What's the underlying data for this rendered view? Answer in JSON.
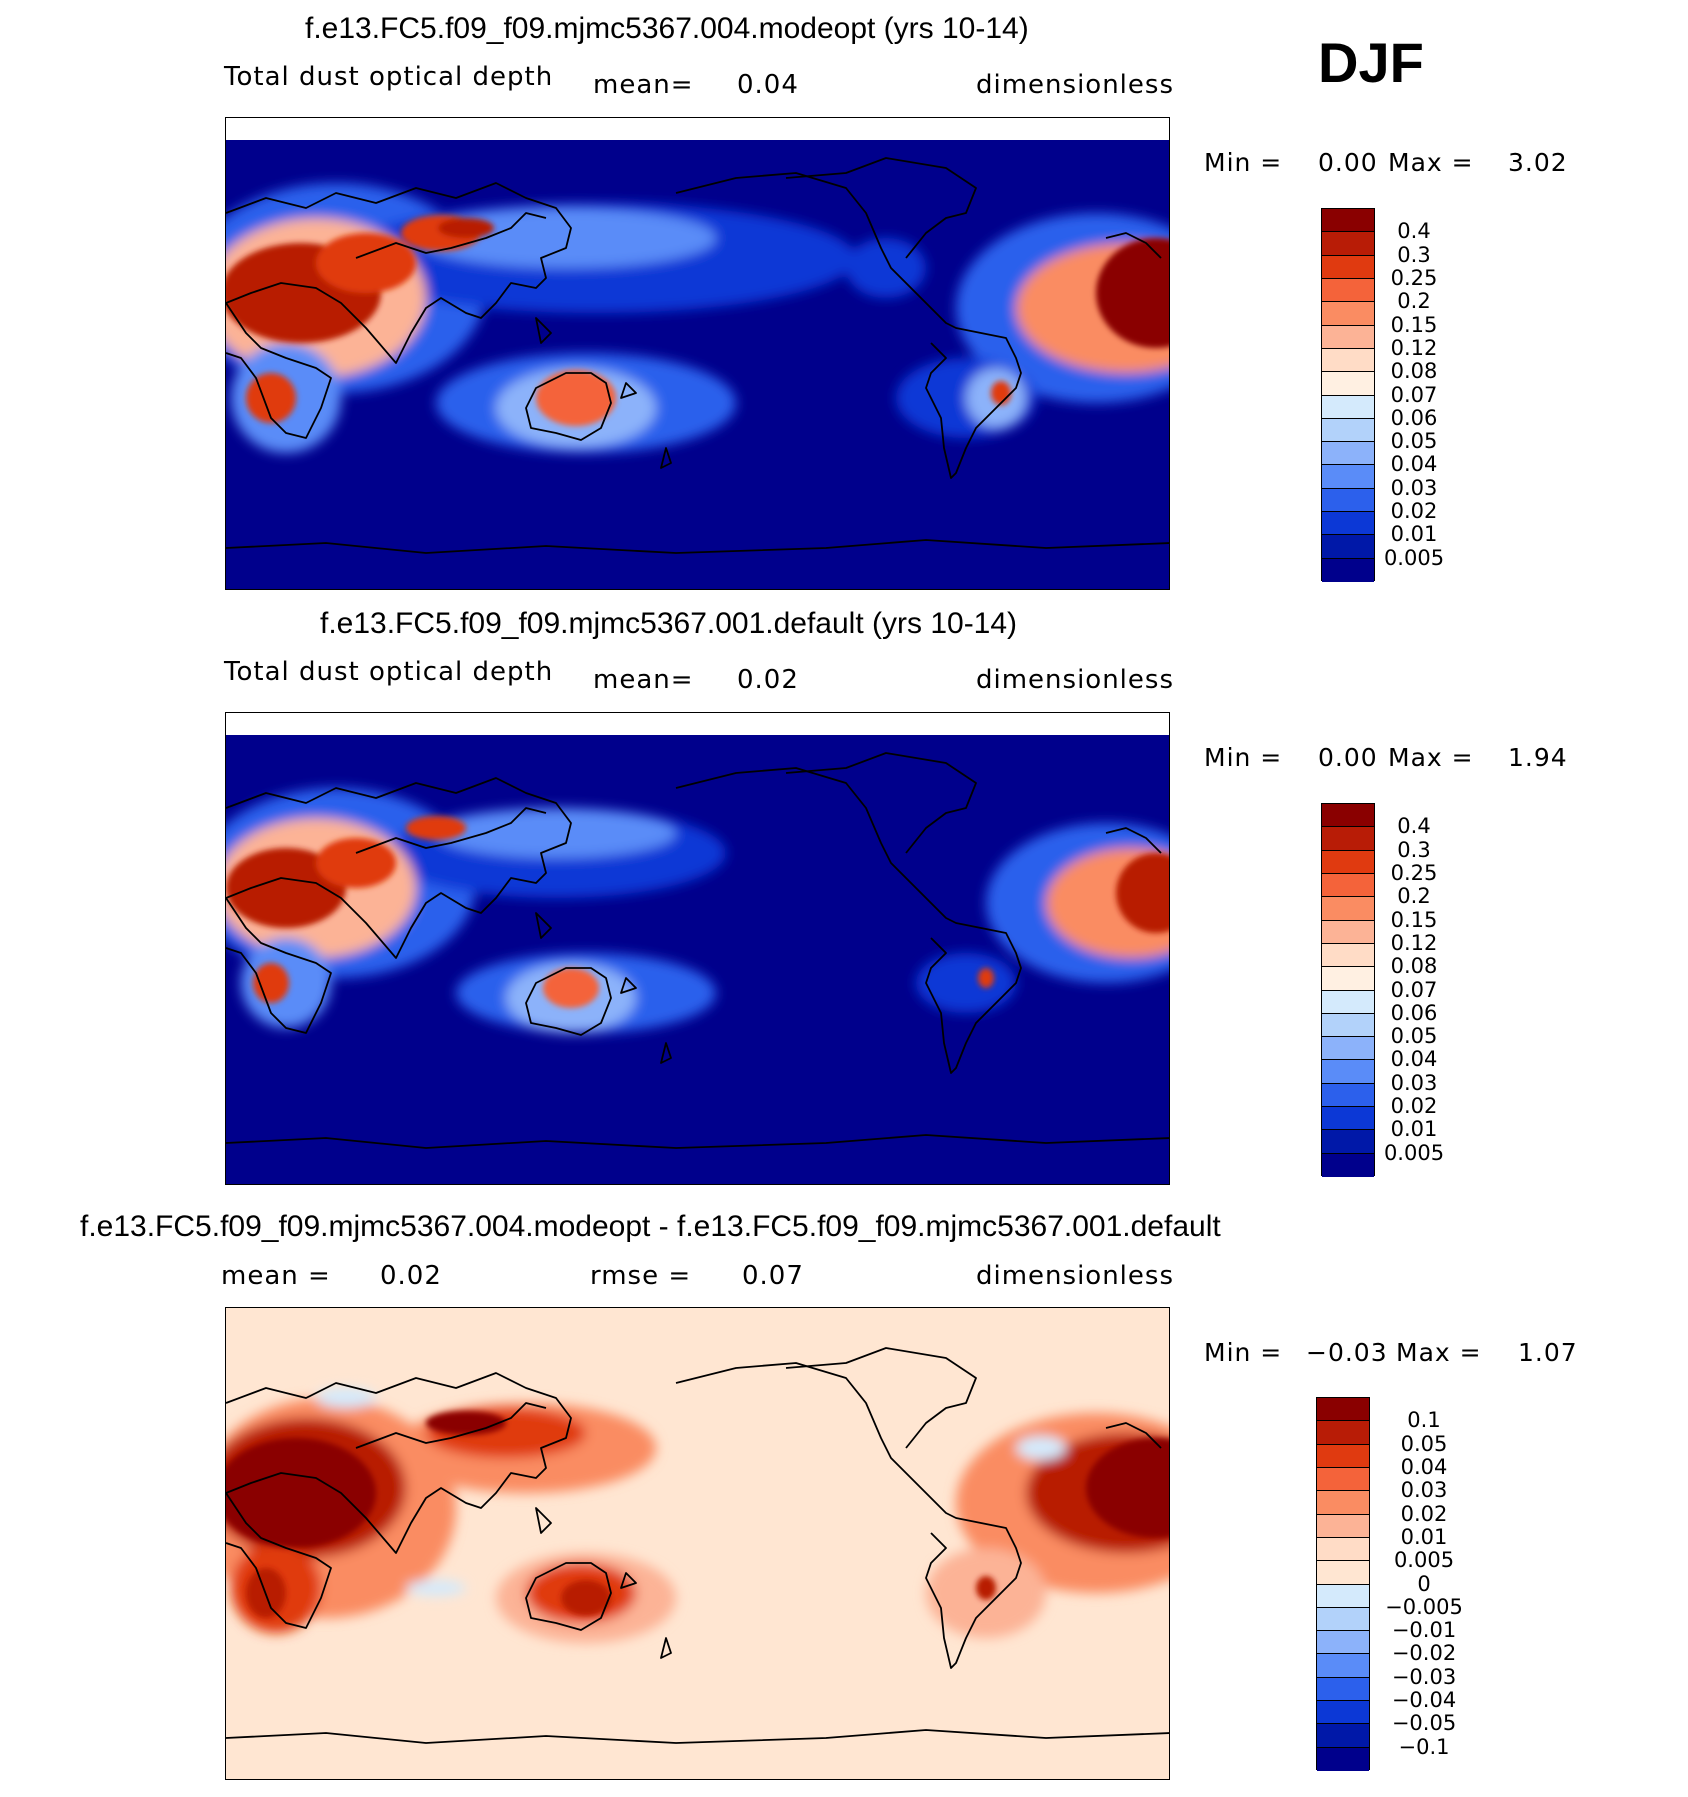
{
  "season": "DJF",
  "panels": [
    {
      "title": "f.e13.FC5.f09_f09.mjmc5367.004.modeopt (yrs 10-14)",
      "left_label": "Total dust optical depth",
      "mid_label": "mean=",
      "mid_value": "0.04",
      "units": "dimensionless",
      "min_label": "Min =",
      "min_value": "0.00",
      "max_label": "Max =",
      "max_value": "3.02",
      "background": "#00008c",
      "colorbar": {
        "labels": [
          "0.4",
          "0.3",
          "0.25",
          "0.2",
          "0.15",
          "0.12",
          "0.08",
          "0.07",
          "0.06",
          "0.05",
          "0.04",
          "0.03",
          "0.02",
          "0.01",
          "0.005"
        ],
        "colors": [
          "#8a0000",
          "#b81c06",
          "#e03a10",
          "#f4633a",
          "#fa8c62",
          "#fcb396",
          "#ffdcc6",
          "#fff0e2",
          "#d4eafc",
          "#b2d2fa",
          "#8cb2fa",
          "#5a8cf8",
          "#2c60ec",
          "#0c38d6",
          "#0018a8",
          "#00008c"
        ]
      }
    },
    {
      "title": "f.e13.FC5.f09_f09.mjmc5367.001.default (yrs 10-14)",
      "left_label": "Total dust optical depth",
      "mid_label": "mean=",
      "mid_value": "0.02",
      "units": "dimensionless",
      "min_label": "Min =",
      "min_value": "0.00",
      "max_label": "Max =",
      "max_value": "1.94",
      "background": "#00008c",
      "colorbar": {
        "labels": [
          "0.4",
          "0.3",
          "0.25",
          "0.2",
          "0.15",
          "0.12",
          "0.08",
          "0.07",
          "0.06",
          "0.05",
          "0.04",
          "0.03",
          "0.02",
          "0.01",
          "0.005"
        ],
        "colors": [
          "#8a0000",
          "#b81c06",
          "#e03a10",
          "#f4633a",
          "#fa8c62",
          "#fcb396",
          "#ffdcc6",
          "#fff0e2",
          "#d4eafc",
          "#b2d2fa",
          "#8cb2fa",
          "#5a8cf8",
          "#2c60ec",
          "#0c38d6",
          "#0018a8",
          "#00008c"
        ]
      }
    },
    {
      "title": "f.e13.FC5.f09_f09.mjmc5367.004.modeopt - f.e13.FC5.f09_f09.mjmc5367.001.default",
      "left_label": "mean =",
      "left_value": "0.02",
      "mid_label": "rmse =",
      "mid_value": "0.07",
      "units": "dimensionless",
      "min_label": "Min =",
      "min_value": "−0.03",
      "max_label": "Max =",
      "max_value": "1.07",
      "background": "#ffe6d2",
      "colorbar": {
        "labels": [
          "0.1",
          "0.05",
          "0.04",
          "0.03",
          "0.02",
          "0.01",
          "0.005",
          "0",
          "−0.005",
          "−0.01",
          "−0.02",
          "−0.03",
          "−0.04",
          "−0.05",
          "−0.1"
        ],
        "colors": [
          "#8a0000",
          "#b81c06",
          "#e03a10",
          "#f4633a",
          "#fa8c62",
          "#fcb396",
          "#ffdcc6",
          "#ffe6d2",
          "#d4eafc",
          "#b2d2fa",
          "#8cb2fa",
          "#5a8cf8",
          "#2c60ec",
          "#0c38d6",
          "#0018a8",
          "#00008c"
        ]
      }
    }
  ]
}
